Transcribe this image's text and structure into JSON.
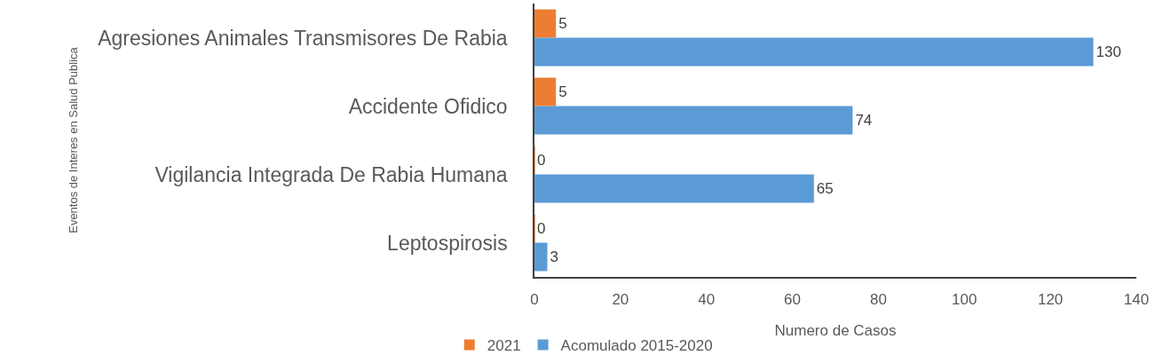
{
  "chart_data": {
    "type": "bar",
    "orientation": "horizontal",
    "ylabel": "Eventos de Interes en Salud Publica",
    "xlabel": "Numero de Casos",
    "categories": [
      "Agresiones Animales Transmisores De Rabia",
      "Accidente Ofidico",
      "Vigilancia Integrada De Rabia Humana",
      "Leptospirosis"
    ],
    "series": [
      {
        "name": "2021",
        "color": "#ed7d31",
        "values": [
          5,
          5,
          0,
          0
        ]
      },
      {
        "name": "Acomulado 2015-2020",
        "color": "#5b9bd5",
        "values": [
          130,
          74,
          65,
          3
        ]
      }
    ],
    "xlim": [
      0,
      140
    ],
    "xticks": [
      0,
      20,
      40,
      60,
      80,
      100,
      120,
      140
    ],
    "data_labels": true,
    "grid": false,
    "legend": "bottom"
  }
}
